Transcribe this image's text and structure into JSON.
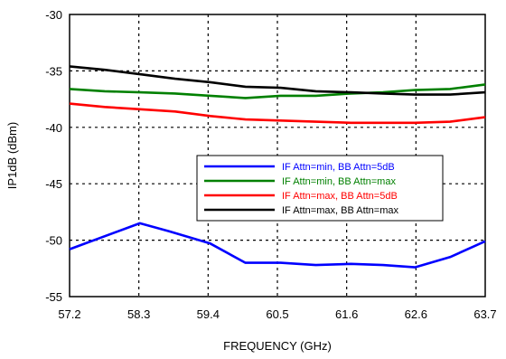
{
  "chart_data": {
    "type": "line",
    "title": "",
    "xlabel": "FREQUENCY (GHz)",
    "ylabel": "IP1dB (dBm)",
    "xlim": [
      57.2,
      63.7
    ],
    "ylim": [
      -55,
      -30
    ],
    "x_ticks": [
      "57.2",
      "58.3",
      "59.4",
      "60.5",
      "61.6",
      "62.6",
      "63.7"
    ],
    "y_ticks": [
      "-30",
      "-35",
      "-40",
      "-45",
      "-50",
      "-55"
    ],
    "grid": true,
    "legend_position": "center-right",
    "series": [
      {
        "name": "IF Attn=min, BB Attn=5dB",
        "color": "#0000ff",
        "x": [
          57.2,
          58.3,
          58.75,
          59.4,
          59.95,
          60.5,
          61.05,
          61.6,
          62.1,
          62.6,
          63.15,
          63.7
        ],
        "y": [
          -50.8,
          -48.5,
          -49.2,
          -50.3,
          -52.0,
          -52.0,
          -52.2,
          -52.1,
          -52.2,
          -52.4,
          -51.5,
          -50.1
        ]
      },
      {
        "name": "IF Attn=min, BB Attn=max",
        "color": "#008000",
        "x": [
          57.2,
          57.75,
          58.3,
          58.85,
          59.4,
          59.95,
          60.5,
          61.05,
          61.6,
          62.1,
          62.6,
          63.15,
          63.7
        ],
        "y": [
          -36.6,
          -36.8,
          -36.9,
          -37.0,
          -37.2,
          -37.4,
          -37.2,
          -37.2,
          -37.0,
          -36.9,
          -36.7,
          -36.6,
          -36.2
        ]
      },
      {
        "name": "IF Attn=max, BB Attn=5dB",
        "color": "#ff0000",
        "x": [
          57.2,
          57.75,
          58.3,
          58.85,
          59.4,
          59.95,
          60.5,
          61.05,
          61.6,
          62.1,
          62.6,
          63.15,
          63.7
        ],
        "y": [
          -37.9,
          -38.2,
          -38.4,
          -38.6,
          -39.0,
          -39.3,
          -39.4,
          -39.5,
          -39.6,
          -39.6,
          -39.6,
          -39.5,
          -39.1
        ]
      },
      {
        "name": "IF Attn=max, BB Attn=max",
        "color": "#000000",
        "x": [
          57.2,
          57.75,
          58.3,
          58.85,
          59.4,
          59.95,
          60.5,
          61.05,
          61.6,
          62.1,
          62.6,
          63.15,
          63.7
        ],
        "y": [
          -34.6,
          -34.9,
          -35.3,
          -35.7,
          -36.0,
          -36.4,
          -36.5,
          -36.8,
          -36.9,
          -37.0,
          -37.1,
          -37.1,
          -36.9
        ]
      }
    ]
  }
}
